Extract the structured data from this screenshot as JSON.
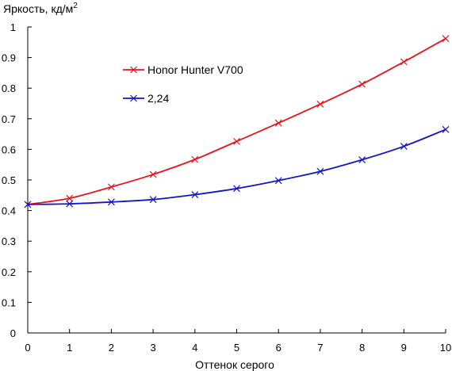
{
  "chart_data": {
    "type": "line",
    "ylabel": "Яркость, кд/м",
    "ylabel_sup": "2",
    "xlabel": "Оттенок серого",
    "xlim": [
      0,
      10
    ],
    "ylim": [
      0,
      1
    ],
    "grid": false,
    "legend_position": "upper-left",
    "x": [
      0,
      1,
      2,
      3,
      4,
      5,
      6,
      7,
      8,
      9,
      10
    ],
    "x_tick_labels": [
      "0",
      "1",
      "2",
      "3",
      "4",
      "5",
      "6",
      "7",
      "8",
      "9",
      "10"
    ],
    "y_ticks": [
      0,
      0.1,
      0.2,
      0.3,
      0.4,
      0.5,
      0.6,
      0.7,
      0.8,
      0.9,
      1
    ],
    "y_tick_labels": [
      "0",
      "0.1",
      "0.2",
      "0.3",
      "0.4",
      "0.5",
      "0.6",
      "0.7",
      "0.8",
      "0.9",
      "1"
    ],
    "series": [
      {
        "name": "Honor Hunter V700",
        "color": "#e8141c",
        "marker": "x",
        "values": [
          0.42,
          0.44,
          0.477,
          0.518,
          0.567,
          0.626,
          0.686,
          0.748,
          0.813,
          0.886,
          0.962
        ]
      },
      {
        "name": "2,24",
        "color": "#1414c8",
        "marker": "x",
        "values": [
          0.42,
          0.422,
          0.428,
          0.436,
          0.452,
          0.472,
          0.498,
          0.528,
          0.566,
          0.61,
          0.665
        ]
      }
    ]
  }
}
